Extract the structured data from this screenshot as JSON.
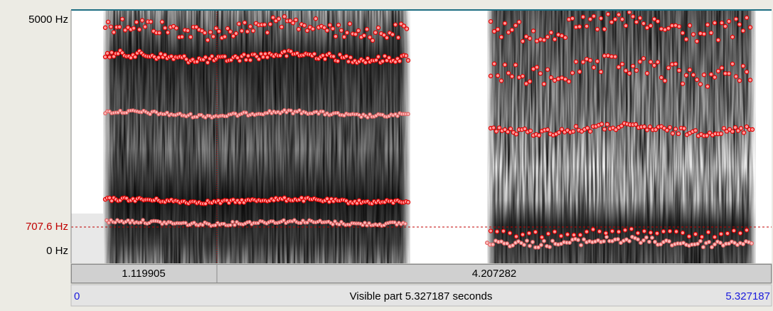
{
  "frequency_axis": {
    "top_label": "5000 Hz",
    "cursor_label": "707.6 Hz",
    "bottom_label": "0 Hz"
  },
  "segments": [
    "1.119905",
    "4.207282"
  ],
  "footer": {
    "start": "0",
    "label": "Visible part 5.327187 seconds",
    "end": "5.327187"
  }
}
